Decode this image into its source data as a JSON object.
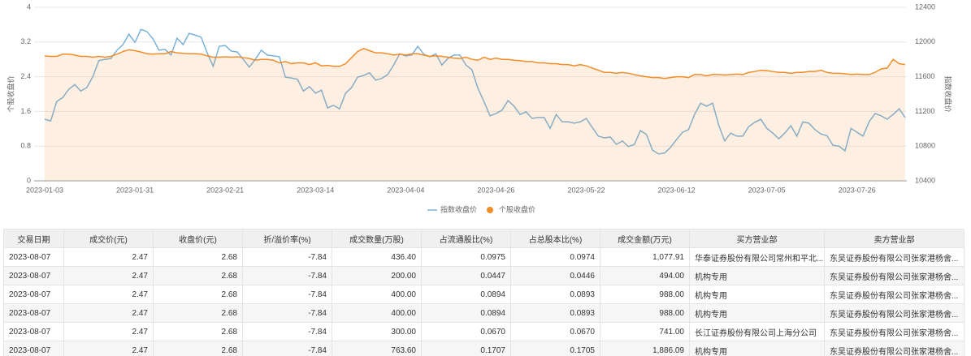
{
  "chart_data": {
    "type": "line",
    "categories": [
      "2023-01-03",
      null,
      null,
      null,
      null,
      null,
      null,
      null,
      null,
      null,
      null,
      null,
      null,
      null,
      null,
      "2023-01-31",
      null,
      null,
      null,
      null,
      null,
      null,
      null,
      null,
      null,
      null,
      null,
      null,
      null,
      null,
      "2023-02-21",
      null,
      null,
      null,
      null,
      null,
      null,
      null,
      null,
      null,
      null,
      null,
      null,
      null,
      null,
      "2023-03-14",
      null,
      null,
      null,
      null,
      null,
      null,
      null,
      null,
      null,
      null,
      null,
      null,
      null,
      null,
      "2023-04-04",
      null,
      null,
      null,
      null,
      null,
      null,
      null,
      null,
      null,
      null,
      null,
      null,
      null,
      null,
      "2023-04-26",
      null,
      null,
      null,
      null,
      null,
      null,
      null,
      null,
      null,
      null,
      null,
      null,
      null,
      null,
      "2023-05-22",
      null,
      null,
      null,
      null,
      null,
      null,
      null,
      null,
      null,
      null,
      null,
      null,
      null,
      null,
      "2023-06-12",
      null,
      null,
      null,
      null,
      null,
      null,
      null,
      null,
      null,
      null,
      null,
      null,
      null,
      null,
      "2023-07-05",
      null,
      null,
      null,
      null,
      null,
      null,
      null,
      null,
      null,
      null,
      null,
      null,
      null,
      null,
      "2023-07-26",
      null,
      null,
      null,
      null,
      null,
      null,
      null,
      null
    ],
    "series": [
      {
        "name": "指数收盘价",
        "color": "#7ab1d9",
        "axis": "y2",
        "values": [
          11110,
          11090,
          11315,
          11360,
          11455,
          11510,
          11435,
          11475,
          11600,
          11785,
          11800,
          11810,
          11905,
          11970,
          12090,
          11995,
          12145,
          12120,
          12035,
          11905,
          11915,
          11850,
          12045,
          11970,
          12100,
          12080,
          12055,
          11875,
          11720,
          11950,
          11960,
          11895,
          11885,
          11800,
          11710,
          11800,
          11905,
          11850,
          11840,
          11830,
          11595,
          11585,
          11570,
          11435,
          11485,
          11410,
          11445,
          11240,
          11270,
          11230,
          11410,
          11475,
          11595,
          11615,
          11645,
          11560,
          11580,
          11625,
          11735,
          11865,
          11840,
          11850,
          11950,
          11860,
          11830,
          11865,
          11735,
          11810,
          11850,
          11850,
          11735,
          11680,
          11465,
          11315,
          11150,
          11175,
          11215,
          11325,
          11260,
          11165,
          11195,
          11120,
          11130,
          11130,
          11005,
          11165,
          11080,
          11080,
          11065,
          11080,
          11120,
          11015,
          10915,
          10895,
          10905,
          10820,
          10860,
          10795,
          10820,
          10980,
          10935,
          10755,
          10710,
          10720,
          10785,
          10875,
          10960,
          10990,
          11165,
          11295,
          11260,
          11295,
          11045,
          10860,
          10950,
          10915,
          10915,
          11025,
          11075,
          11110,
          11005,
          10950,
          10885,
          10950,
          11035,
          10915,
          11080,
          11065,
          10990,
          10940,
          10920,
          10810,
          10800,
          10745,
          11005,
          10960,
          10915,
          11080,
          11175,
          11150,
          11110,
          11165,
          11230,
          11130
        ]
      },
      {
        "name": "个股收盘价",
        "color": "#f28c28",
        "fill": true,
        "values": [
          2.88,
          2.87,
          2.87,
          2.92,
          2.92,
          2.9,
          2.87,
          2.87,
          2.85,
          2.87,
          2.85,
          2.87,
          2.92,
          2.98,
          3.02,
          3.0,
          2.97,
          2.93,
          2.92,
          2.93,
          2.93,
          2.98,
          2.95,
          2.94,
          2.93,
          2.93,
          2.92,
          2.88,
          2.85,
          2.85,
          2.86,
          2.85,
          2.86,
          2.84,
          2.82,
          2.78,
          2.8,
          2.8,
          2.78,
          2.72,
          2.75,
          2.7,
          2.72,
          2.72,
          2.68,
          2.72,
          2.65,
          2.66,
          2.64,
          2.64,
          2.7,
          2.84,
          2.98,
          3.05,
          3.0,
          2.95,
          2.95,
          2.93,
          2.9,
          2.92,
          2.9,
          2.93,
          2.93,
          2.9,
          2.87,
          2.88,
          2.87,
          2.85,
          2.83,
          2.82,
          2.85,
          2.8,
          2.78,
          2.85,
          2.8,
          2.83,
          2.8,
          2.8,
          2.78,
          2.77,
          2.75,
          2.75,
          2.72,
          2.72,
          2.7,
          2.7,
          2.68,
          2.68,
          2.65,
          2.68,
          2.65,
          2.6,
          2.55,
          2.5,
          2.5,
          2.48,
          2.5,
          2.48,
          2.45,
          2.42,
          2.4,
          2.38,
          2.38,
          2.36,
          2.38,
          2.4,
          2.4,
          2.38,
          2.45,
          2.45,
          2.42,
          2.45,
          2.45,
          2.44,
          2.45,
          2.46,
          2.45,
          2.5,
          2.52,
          2.55,
          2.54,
          2.52,
          2.5,
          2.5,
          2.48,
          2.5,
          2.5,
          2.52,
          2.52,
          2.55,
          2.5,
          2.48,
          2.48,
          2.47,
          2.45,
          2.46,
          2.45,
          2.45,
          2.5,
          2.58,
          2.6,
          2.8,
          2.7,
          2.68
        ]
      }
    ],
    "y_label": "个股收盘价",
    "y2_label": "指数收盘价",
    "ylim": [
      0,
      4
    ],
    "yticks": [
      0,
      0.8,
      1.6,
      2.4,
      3.2,
      4
    ],
    "y2lim": [
      10400,
      12400
    ],
    "y2ticks": [
      10400,
      10800,
      11200,
      11600,
      12000,
      12400
    ],
    "grid": true,
    "legend": "bottom"
  },
  "table": {
    "columns": [
      "交易日期",
      "成交价(元)",
      "收盘价(元)",
      "折/溢价率(%)",
      "成交数量(万股)",
      "占流通股比(%)",
      "占总股本比(%)",
      "成交金额(万元)",
      "买方营业部",
      "卖方营业部"
    ],
    "rows": [
      [
        "2023-08-07",
        "2.47",
        "2.68",
        "-7.84",
        "436.40",
        "0.0975",
        "0.0974",
        "1,077.91",
        "华泰证券股份有限公司常州和平北...",
        "东吴证券股份有限公司张家港杨舍..."
      ],
      [
        "2023-08-07",
        "2.47",
        "2.68",
        "-7.84",
        "200.00",
        "0.0447",
        "0.0446",
        "494.00",
        "机构专用",
        "东吴证券股份有限公司张家港杨舍..."
      ],
      [
        "2023-08-07",
        "2.47",
        "2.68",
        "-7.84",
        "400.00",
        "0.0894",
        "0.0893",
        "988.00",
        "机构专用",
        "东吴证券股份有限公司张家港杨舍..."
      ],
      [
        "2023-08-07",
        "2.47",
        "2.68",
        "-7.84",
        "400.00",
        "0.0894",
        "0.0893",
        "988.00",
        "机构专用",
        "东吴证券股份有限公司张家港杨舍..."
      ],
      [
        "2023-08-07",
        "2.47",
        "2.68",
        "-7.84",
        "300.00",
        "0.0670",
        "0.0670",
        "741.00",
        "长江证券股份有限公司上海分公司",
        "东吴证券股份有限公司张家港杨舍..."
      ],
      [
        "2023-08-07",
        "2.47",
        "2.68",
        "-7.84",
        "763.60",
        "0.1707",
        "0.1705",
        "1,886.09",
        "机构专用",
        "东吴证券股份有限公司张家港杨舍..."
      ]
    ]
  }
}
